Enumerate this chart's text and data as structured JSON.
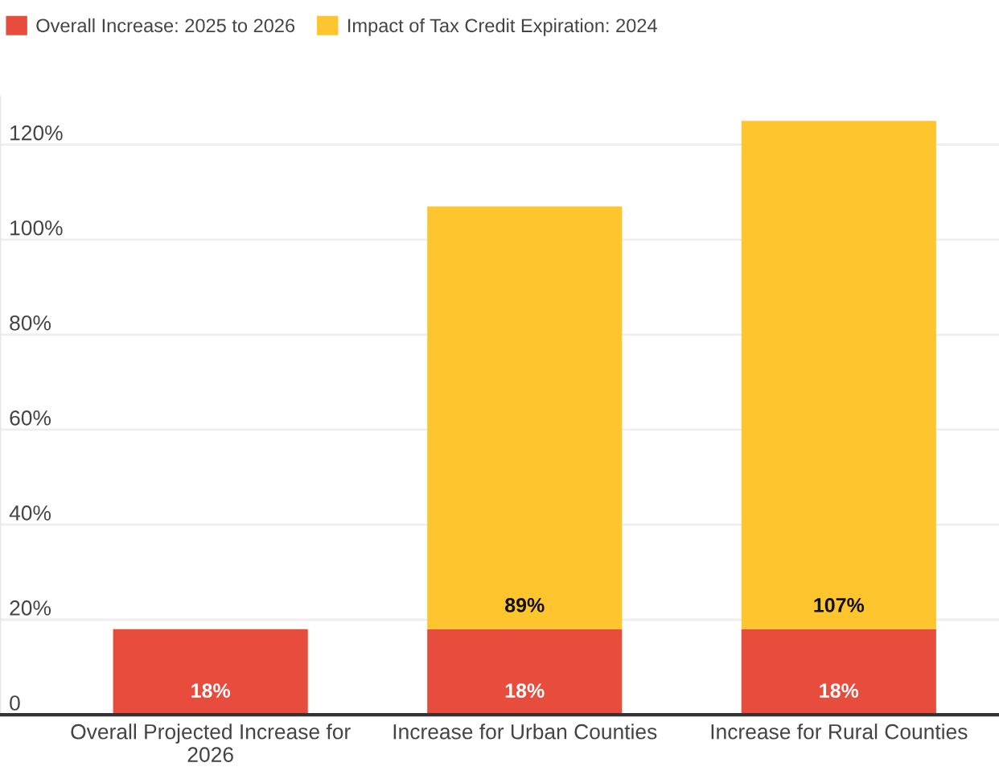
{
  "chart_data": {
    "type": "bar",
    "stacked": true,
    "categories": [
      "Overall Projected Increase for\n2026",
      "Increase for Urban Counties",
      "Increase for Rural Counties"
    ],
    "series": [
      {
        "name": "Overall Increase: 2025 to 2026",
        "color": "#e84c3d",
        "values": [
          18,
          18,
          18
        ],
        "value_labels": [
          "18%",
          "18%",
          "18%"
        ]
      },
      {
        "name": "Impact of Tax Credit Expiration: 2024",
        "color": "#fec52e",
        "values": [
          null,
          89,
          107
        ],
        "value_labels": [
          null,
          "89%",
          "107%"
        ]
      }
    ],
    "yticks": [
      {
        "value": 0,
        "label": "0"
      },
      {
        "value": 20,
        "label": "20%"
      },
      {
        "value": 40,
        "label": "40%"
      },
      {
        "value": 60,
        "label": "60%"
      },
      {
        "value": 80,
        "label": "80%"
      },
      {
        "value": 100,
        "label": "100%"
      },
      {
        "value": 120,
        "label": "120%"
      }
    ],
    "ylim": [
      0,
      130
    ],
    "grid": "y",
    "legend": "top left"
  }
}
